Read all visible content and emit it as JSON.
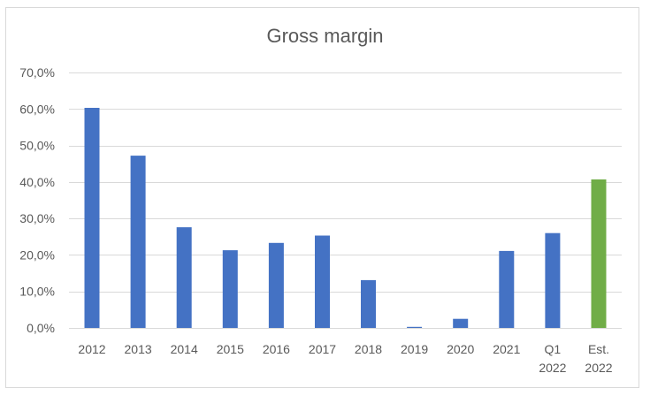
{
  "chart_data": {
    "type": "bar",
    "title": "Gross margin",
    "xlabel": "",
    "ylabel": "",
    "categories": [
      "2012",
      "2013",
      "2014",
      "2015",
      "2016",
      "2017",
      "2018",
      "2019",
      "2020",
      "2021",
      "Q1 2022",
      "Est. 2022"
    ],
    "series": [
      {
        "values": [
          60.3,
          47.2,
          27.6,
          21.3,
          23.3,
          25.3,
          13.1,
          0.3,
          2.5,
          21.1,
          26.0,
          40.7
        ]
      }
    ],
    "bar_colors": [
      "#4472c4",
      "#4472c4",
      "#4472c4",
      "#4472c4",
      "#4472c4",
      "#4472c4",
      "#4472c4",
      "#4472c4",
      "#4472c4",
      "#4472c4",
      "#4472c4",
      "#70ad47"
    ],
    "ylim": [
      0,
      70
    ],
    "yticks": [
      0,
      10,
      20,
      30,
      40,
      50,
      60,
      70
    ],
    "ytick_labels": [
      "0,0%",
      "10,0%",
      "20,0%",
      "30,0%",
      "40,0%",
      "50,0%",
      "60,0%",
      "70,0%"
    ],
    "grid": true,
    "legend": "none",
    "gridline_color": "#d9d9d9",
    "text_color": "#595959"
  }
}
